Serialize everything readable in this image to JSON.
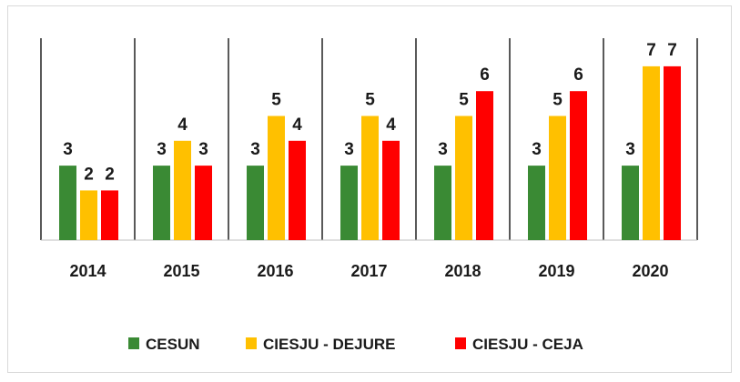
{
  "chart_data": {
    "type": "bar",
    "categories": [
      "2014",
      "2015",
      "2016",
      "2017",
      "2018",
      "2019",
      "2020"
    ],
    "series": [
      {
        "name": "CESUN",
        "color": "#3a8a34",
        "values": [
          3,
          3,
          3,
          3,
          3,
          3,
          3
        ]
      },
      {
        "name": "CIESJU - DEJURE",
        "color": "#ffc000",
        "values": [
          2,
          4,
          5,
          5,
          5,
          5,
          7
        ]
      },
      {
        "name": "CIESJU - CEJA",
        "color": "#ff0000",
        "values": [
          2,
          3,
          4,
          4,
          6,
          6,
          7
        ]
      }
    ],
    "ylim": [
      0,
      7
    ],
    "data_labels": true,
    "legend_position": "bottom",
    "grid": false
  }
}
